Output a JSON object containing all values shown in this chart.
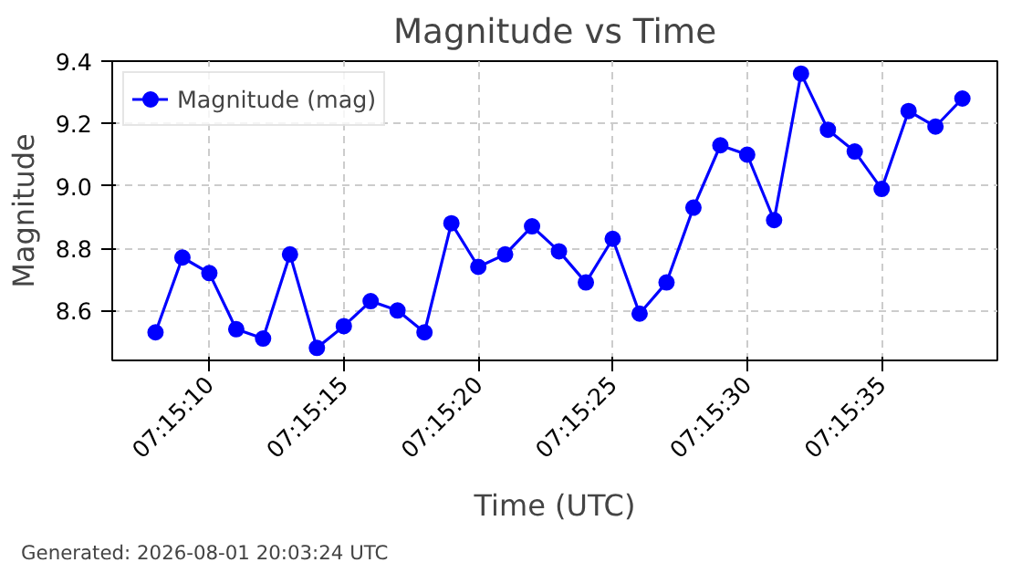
{
  "chart_data": {
    "type": "line",
    "title": "Magnitude vs Time",
    "xlabel": "Time (UTC)",
    "ylabel": "Magnitude",
    "annotations": [
      "Generated: 2026-08-01 20:03:24 UTC"
    ],
    "x": [
      7.252222,
      7.2525,
      7.252778,
      7.253056,
      7.253333,
      7.253611,
      7.253889,
      7.254167,
      7.254444,
      7.254722,
      7.255,
      7.255278,
      7.255556,
      7.255833,
      7.256111,
      7.256389,
      7.256667,
      7.256944,
      7.257222,
      7.2575,
      7.257778,
      7.258056,
      7.258333,
      7.258611,
      7.258889,
      7.259167,
      7.259444,
      7.259722,
      7.26,
      7.260278,
      7.260556
    ],
    "series": [
      {
        "name": "Magnitude (mag)",
        "color": "#0000ff",
        "values": [
          8.53,
          8.77,
          8.72,
          8.54,
          8.51,
          8.78,
          8.48,
          8.55,
          8.63,
          8.6,
          8.53,
          8.88,
          8.74,
          8.78,
          8.87,
          8.79,
          8.69,
          8.83,
          8.59,
          8.69,
          8.93,
          9.13,
          9.1,
          8.89,
          9.36,
          9.18,
          9.11,
          8.99,
          9.24,
          9.19,
          9.28
        ]
      }
    ],
    "xlim": [
      7.251775,
      7.260917
    ],
    "ylim": [
      8.44,
      9.4
    ],
    "xticks": [
      {
        "value": 7.252778,
        "label": "07:15:10"
      },
      {
        "value": 7.254167,
        "label": "07:15:15"
      },
      {
        "value": 7.255556,
        "label": "07:15:20"
      },
      {
        "value": 7.256944,
        "label": "07:15:25"
      },
      {
        "value": 7.258333,
        "label": "07:15:30"
      },
      {
        "value": 7.259722,
        "label": "07:15:35"
      }
    ],
    "yticks": [
      {
        "value": 8.6,
        "label": "8.6"
      },
      {
        "value": 8.8,
        "label": "8.8"
      },
      {
        "value": 9.0,
        "label": "9.0"
      },
      {
        "value": 9.2,
        "label": "9.2"
      },
      {
        "value": 9.4,
        "label": "9.4"
      }
    ],
    "grid": true,
    "legend": "top left",
    "marker": "circle",
    "line_style": "solid"
  }
}
